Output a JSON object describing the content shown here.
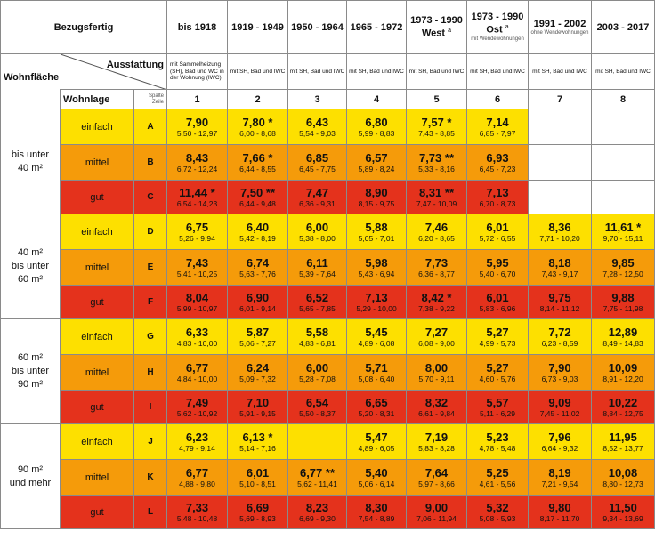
{
  "header": {
    "bezugsfertig": "Bezugsfertig",
    "ausstattung": "Ausstattung",
    "wohnflaeche": "Wohnfläche",
    "wohnlage": "Wohnlage",
    "spalte": "Spalte",
    "zeile": "Zeile",
    "periods": [
      {
        "label": "bis 1918",
        "sup": "",
        "sub": ""
      },
      {
        "label": "1919 - 1949",
        "sup": "",
        "sub": ""
      },
      {
        "label": "1950 - 1964",
        "sup": "",
        "sub": ""
      },
      {
        "label": "1965 - 1972",
        "sup": "",
        "sub": ""
      },
      {
        "label": "1973 - 1990",
        "label2": "West",
        "sup": "a",
        "sub": ""
      },
      {
        "label": "1973 - 1990",
        "label2": "Ost",
        "sup": "a",
        "sub": "mit Wendewohnungen"
      },
      {
        "label": "1991 - 2002",
        "sup": "",
        "sub": "ohne Wendewohnungen"
      },
      {
        "label": "2003 - 2017",
        "sup": "",
        "sub": ""
      }
    ],
    "equipment": [
      "mit Sammelheizung (SH), Bad und WC in der Wohnung (IWC)",
      "mit SH, Bad und IWC",
      "mit SH, Bad und IWC",
      "mit SH, Bad und IWC",
      "mit SH, Bad und IWC",
      "mit SH, Bad und IWC",
      "mit SH, Bad und IWC",
      "mit SH, Bad und IWC"
    ],
    "column_numbers": [
      "1",
      "2",
      "3",
      "4",
      "5",
      "6",
      "7",
      "8"
    ]
  },
  "groups": [
    {
      "area": [
        "bis unter",
        "40 m²"
      ],
      "rows": [
        {
          "lage": "einfach",
          "zeile": "A",
          "color": "yellow",
          "cells": [
            {
              "v": "7,90",
              "r": "5,50 - 12,97"
            },
            {
              "v": "7,80 *",
              "r": "6,00 - 8,68"
            },
            {
              "v": "6,43",
              "r": "5,54 - 9,03"
            },
            {
              "v": "6,80",
              "r": "5,99 - 8,83"
            },
            {
              "v": "7,57 *",
              "r": "7,43 - 8,85"
            },
            {
              "v": "7,14",
              "r": "6,85 - 7,97"
            },
            {
              "v": "",
              "r": ""
            },
            {
              "v": "",
              "r": ""
            }
          ]
        },
        {
          "lage": "mittel",
          "zeile": "B",
          "color": "orange",
          "cells": [
            {
              "v": "8,43",
              "r": "6,72 - 12,24"
            },
            {
              "v": "7,66 *",
              "r": "6,44 - 8,55"
            },
            {
              "v": "6,85",
              "r": "6,45 - 7,75"
            },
            {
              "v": "6,57",
              "r": "5,89 - 8,24"
            },
            {
              "v": "7,73 **",
              "r": "5,33 - 8,16"
            },
            {
              "v": "6,93",
              "r": "6,45 - 7,23"
            },
            {
              "v": "",
              "r": ""
            },
            {
              "v": "",
              "r": ""
            }
          ]
        },
        {
          "lage": "gut",
          "zeile": "C",
          "color": "red",
          "cells": [
            {
              "v": "11,44 *",
              "r": "6,54 - 14,23"
            },
            {
              "v": "7,50 **",
              "r": "6,44 - 9,48"
            },
            {
              "v": "7,47",
              "r": "6,36 - 9,31"
            },
            {
              "v": "8,90",
              "r": "8,15 - 9,75"
            },
            {
              "v": "8,31 **",
              "r": "7,47 - 10,09"
            },
            {
              "v": "7,13",
              "r": "6,70 - 8,73"
            },
            {
              "v": "",
              "r": ""
            },
            {
              "v": "",
              "r": ""
            }
          ]
        }
      ]
    },
    {
      "area": [
        "40 m²",
        "bis unter",
        "60 m²"
      ],
      "rows": [
        {
          "lage": "einfach",
          "zeile": "D",
          "color": "yellow",
          "cells": [
            {
              "v": "6,75",
              "r": "5,26 - 9,94"
            },
            {
              "v": "6,40",
              "r": "5,42 - 8,19"
            },
            {
              "v": "6,00",
              "r": "5,38 - 8,00"
            },
            {
              "v": "5,88",
              "r": "5,05 - 7,01"
            },
            {
              "v": "7,46",
              "r": "6,20 - 8,65"
            },
            {
              "v": "6,01",
              "r": "5,72 - 6,55"
            },
            {
              "v": "8,36",
              "r": "7,71 - 10,20"
            },
            {
              "v": "11,61 *",
              "r": "9,70 - 15,11"
            }
          ]
        },
        {
          "lage": "mittel",
          "zeile": "E",
          "color": "orange",
          "cells": [
            {
              "v": "7,43",
              "r": "5,41 - 10,25"
            },
            {
              "v": "6,74",
              "r": "5,63 - 7,76"
            },
            {
              "v": "6,11",
              "r": "5,39 - 7,64"
            },
            {
              "v": "5,98",
              "r": "5,43 - 6,94"
            },
            {
              "v": "7,73",
              "r": "6,36 - 8,77"
            },
            {
              "v": "5,95",
              "r": "5,40 - 6,70"
            },
            {
              "v": "8,18",
              "r": "7,43 - 9,17"
            },
            {
              "v": "9,85",
              "r": "7,28 - 12,50"
            }
          ]
        },
        {
          "lage": "gut",
          "zeile": "F",
          "color": "red",
          "cells": [
            {
              "v": "8,04",
              "r": "5,99 - 10,97"
            },
            {
              "v": "6,90",
              "r": "6,01 - 9,14"
            },
            {
              "v": "6,52",
              "r": "5,65 - 7,85"
            },
            {
              "v": "7,13",
              "r": "5,29 - 10,00"
            },
            {
              "v": "8,42 *",
              "r": "7,38 - 9,22"
            },
            {
              "v": "6,01",
              "r": "5,83 - 6,96"
            },
            {
              "v": "9,75",
              "r": "8,14 - 11,12"
            },
            {
              "v": "9,88",
              "r": "7,75 - 11,98"
            }
          ]
        }
      ]
    },
    {
      "area": [
        "60 m²",
        "bis unter",
        "90 m²"
      ],
      "rows": [
        {
          "lage": "einfach",
          "zeile": "G",
          "color": "yellow",
          "cells": [
            {
              "v": "6,33",
              "r": "4,83 - 10,00"
            },
            {
              "v": "5,87",
              "r": "5,06 - 7,27"
            },
            {
              "v": "5,58",
              "r": "4,83 - 6,81"
            },
            {
              "v": "5,45",
              "r": "4,89 - 6,08"
            },
            {
              "v": "7,27",
              "r": "6,08 - 9,00"
            },
            {
              "v": "5,27",
              "r": "4,99 - 5,73"
            },
            {
              "v": "7,72",
              "r": "6,23 - 8,59"
            },
            {
              "v": "12,89",
              "r": "8,49 - 14,83"
            }
          ]
        },
        {
          "lage": "mittel",
          "zeile": "H",
          "color": "orange",
          "cells": [
            {
              "v": "6,77",
              "r": "4,84 - 10,00"
            },
            {
              "v": "6,24",
              "r": "5,09 - 7,32"
            },
            {
              "v": "6,00",
              "r": "5,28 - 7,08"
            },
            {
              "v": "5,71",
              "r": "5,08 - 6,40"
            },
            {
              "v": "8,00",
              "r": "5,70 - 9,11"
            },
            {
              "v": "5,27",
              "r": "4,60 - 5,76"
            },
            {
              "v": "7,90",
              "r": "6,73 - 9,03"
            },
            {
              "v": "10,09",
              "r": "8,91 - 12,20"
            }
          ]
        },
        {
          "lage": "gut",
          "zeile": "I",
          "color": "red",
          "cells": [
            {
              "v": "7,49",
              "r": "5,62 - 10,92"
            },
            {
              "v": "7,10",
              "r": "5,91 - 9,15"
            },
            {
              "v": "6,54",
              "r": "5,50 - 8,37"
            },
            {
              "v": "6,65",
              "r": "5,20 - 8,31"
            },
            {
              "v": "8,32",
              "r": "6,61 - 9,84"
            },
            {
              "v": "5,57",
              "r": "5,11 - 6,29"
            },
            {
              "v": "9,09",
              "r": "7,45 - 11,02"
            },
            {
              "v": "10,22",
              "r": "8,84 - 12,75"
            }
          ]
        }
      ]
    },
    {
      "area": [
        "90 m²",
        "und mehr"
      ],
      "rows": [
        {
          "lage": "einfach",
          "zeile": "J",
          "color": "yellow",
          "cells": [
            {
              "v": "6,23",
              "r": "4,79 - 9,14"
            },
            {
              "v": "6,13 *",
              "r": "5,14 - 7,16"
            },
            {
              "v": "",
              "r": ""
            },
            {
              "v": "5,47",
              "r": "4,89 - 6,05"
            },
            {
              "v": "7,19",
              "r": "5,83 - 8,28"
            },
            {
              "v": "5,23",
              "r": "4,78 - 5,48"
            },
            {
              "v": "7,96",
              "r": "6,64 - 9,32"
            },
            {
              "v": "11,95",
              "r": "8,52 - 13,77"
            }
          ]
        },
        {
          "lage": "mittel",
          "zeile": "K",
          "color": "orange",
          "cells": [
            {
              "v": "6,77",
              "r": "4,88 - 9,80"
            },
            {
              "v": "6,01",
              "r": "5,10 - 8,51"
            },
            {
              "v": "6,77 **",
              "r": "5,62 - 11,41"
            },
            {
              "v": "5,40",
              "r": "5,06 - 6,14"
            },
            {
              "v": "7,64",
              "r": "5,97 - 8,66"
            },
            {
              "v": "5,25",
              "r": "4,61 - 5,56"
            },
            {
              "v": "8,19",
              "r": "7,21 - 9,54"
            },
            {
              "v": "10,08",
              "r": "8,80 - 12,73"
            }
          ]
        },
        {
          "lage": "gut",
          "zeile": "L",
          "color": "red",
          "cells": [
            {
              "v": "7,33",
              "r": "5,48 - 10,48"
            },
            {
              "v": "6,69",
              "r": "5,69 - 8,93"
            },
            {
              "v": "8,23",
              "r": "6,69 - 9,30"
            },
            {
              "v": "8,30",
              "r": "7,54 - 8,89"
            },
            {
              "v": "9,00",
              "r": "7,06 - 11,94"
            },
            {
              "v": "5,32",
              "r": "5,08 - 5,93"
            },
            {
              "v": "9,80",
              "r": "8,17 - 11,70"
            },
            {
              "v": "11,50",
              "r": "9,34 - 13,69"
            }
          ]
        }
      ]
    }
  ],
  "colors": {
    "yellow": "#fde000",
    "orange": "#f59b0a",
    "red": "#e4321c"
  }
}
